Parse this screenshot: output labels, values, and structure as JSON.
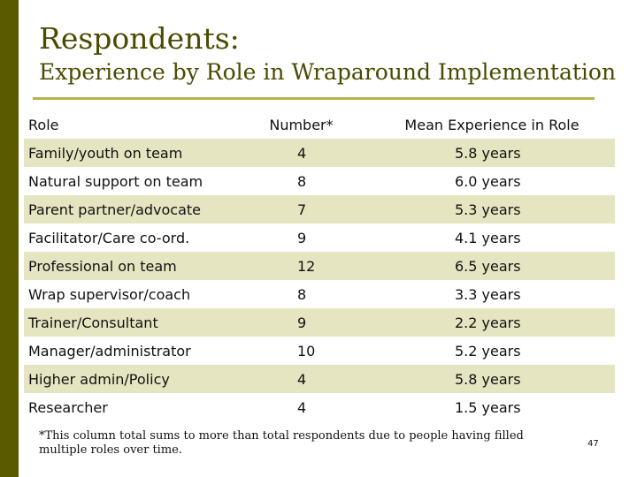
{
  "slide": {
    "title": "Respondents:",
    "subtitle": "Experience by Role in Wraparound Implementation",
    "footnote": "*This column total sums to more than total respondents due to people having filled multiple roles over time.",
    "page_number": "47",
    "colors": {
      "sidebar": "#5a5a00",
      "title": "#4a4a00",
      "rule": "#b5b54c",
      "band": "#e5e5c1"
    }
  },
  "table": {
    "headers": [
      "Role",
      "Number*",
      "Mean Experience in Role"
    ],
    "rows": [
      [
        "Family/youth on team",
        "4",
        "5.8 years"
      ],
      [
        "Natural support on team",
        "8",
        "6.0 years"
      ],
      [
        "Parent partner/advocate",
        "7",
        "5.3 years"
      ],
      [
        "Facilitator/Care co-ord.",
        "9",
        "4.1 years"
      ],
      [
        "Professional on team",
        "12",
        "6.5 years"
      ],
      [
        "Wrap supervisor/coach",
        "8",
        "3.3 years"
      ],
      [
        "Trainer/Consultant",
        "9",
        "2.2 years"
      ],
      [
        "Manager/administrator",
        "10",
        "5.2 years"
      ],
      [
        "Higher admin/Policy",
        "4",
        "5.8 years"
      ],
      [
        "Researcher",
        "4",
        "1.5 years"
      ]
    ]
  }
}
